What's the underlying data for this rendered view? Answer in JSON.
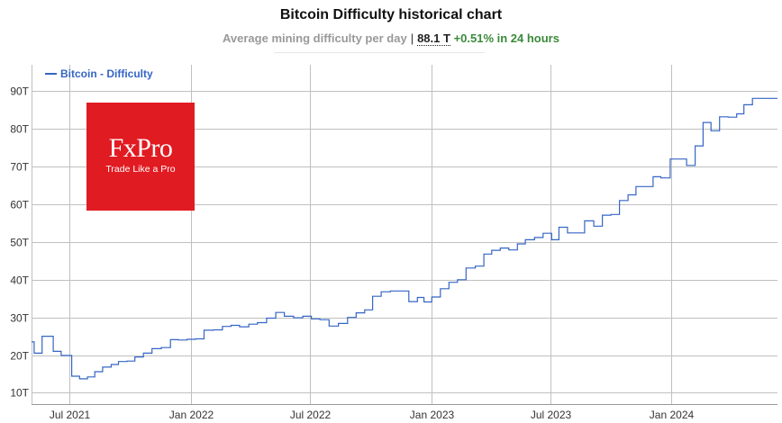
{
  "header": {
    "title": "Bitcoin Difficulty historical chart",
    "subtitle_label": "Average mining difficulty per day",
    "separator": "|",
    "current_value": "88.1 T",
    "change": "+0.51% in 24 hours"
  },
  "logo": {
    "brand": "FxPro",
    "tagline": "Trade Like a Pro"
  },
  "colors": {
    "series": "#3565c5",
    "logo_bg": "#e11b22",
    "grid": "#c0c0c0",
    "change": "#3a8a3a"
  },
  "chart_data": {
    "type": "line",
    "title": "Bitcoin Difficulty historical chart",
    "legend": [
      "Bitcoin - Difficulty"
    ],
    "legend_position": "top-left",
    "grid": true,
    "y_unit": "T",
    "ylim": [
      7,
      97
    ],
    "y_ticks": [
      10,
      20,
      30,
      40,
      50,
      60,
      70,
      80,
      90
    ],
    "y_tick_labels": [
      "10T",
      "20T",
      "30T",
      "40T",
      "50T",
      "60T",
      "70T",
      "80T",
      "90T"
    ],
    "xlim": [
      "2021-05-04",
      "2024-06-10"
    ],
    "x_ticks": [
      "2021-07-01",
      "2022-01-01",
      "2022-07-01",
      "2023-01-01",
      "2023-07-01",
      "2024-01-01"
    ],
    "x_tick_labels": [
      "Jul 2021",
      "Jan 2022",
      "Jul 2022",
      "Jan 2023",
      "Jul 2023",
      "Jan 2024"
    ],
    "series": [
      {
        "name": "Bitcoin - Difficulty",
        "step": true,
        "points": [
          [
            "2021-05-04",
            23.5
          ],
          [
            "2021-05-08",
            20.5
          ],
          [
            "2021-05-20",
            25.0
          ],
          [
            "2021-06-06",
            21.0
          ],
          [
            "2021-06-18",
            19.9
          ],
          [
            "2021-07-04",
            14.4
          ],
          [
            "2021-07-16",
            13.7
          ],
          [
            "2021-07-28",
            14.2
          ],
          [
            "2021-08-08",
            15.6
          ],
          [
            "2021-08-20",
            16.8
          ],
          [
            "2021-09-02",
            17.5
          ],
          [
            "2021-09-13",
            18.3
          ],
          [
            "2021-09-26",
            18.4
          ],
          [
            "2021-10-08",
            19.5
          ],
          [
            "2021-10-21",
            20.5
          ],
          [
            "2021-11-03",
            21.7
          ],
          [
            "2021-11-17",
            22.0
          ],
          [
            "2021-12-01",
            24.1
          ],
          [
            "2021-12-13",
            24.0
          ],
          [
            "2021-12-26",
            24.2
          ],
          [
            "2022-01-08",
            24.3
          ],
          [
            "2022-01-21",
            26.6
          ],
          [
            "2022-02-04",
            26.7
          ],
          [
            "2022-02-18",
            27.6
          ],
          [
            "2022-03-03",
            27.9
          ],
          [
            "2022-03-16",
            27.5
          ],
          [
            "2022-03-30",
            28.2
          ],
          [
            "2022-04-12",
            28.6
          ],
          [
            "2022-04-26",
            29.8
          ],
          [
            "2022-05-10",
            31.3
          ],
          [
            "2022-05-23",
            30.3
          ],
          [
            "2022-06-06",
            29.9
          ],
          [
            "2022-06-20",
            30.3
          ],
          [
            "2022-07-03",
            29.6
          ],
          [
            "2022-07-16",
            29.4
          ],
          [
            "2022-07-30",
            27.7
          ],
          [
            "2022-08-13",
            28.4
          ],
          [
            "2022-08-27",
            30.0
          ],
          [
            "2022-09-09",
            31.2
          ],
          [
            "2022-09-22",
            32.0
          ],
          [
            "2022-10-04",
            35.6
          ],
          [
            "2022-10-17",
            36.8
          ],
          [
            "2022-10-31",
            37.0
          ],
          [
            "2022-11-28",
            34.2
          ],
          [
            "2022-12-11",
            35.3
          ],
          [
            "2022-12-21",
            34.1
          ],
          [
            "2023-01-02",
            35.4
          ],
          [
            "2023-01-15",
            37.6
          ],
          [
            "2023-01-28",
            39.3
          ],
          [
            "2023-02-10",
            40.0
          ],
          [
            "2023-02-23",
            43.1
          ],
          [
            "2023-03-09",
            43.6
          ],
          [
            "2023-03-22",
            46.8
          ],
          [
            "2023-04-03",
            47.8
          ],
          [
            "2023-04-16",
            48.4
          ],
          [
            "2023-04-29",
            47.9
          ],
          [
            "2023-05-12",
            49.5
          ],
          [
            "2023-05-24",
            50.6
          ],
          [
            "2023-06-07",
            51.2
          ],
          [
            "2023-06-20",
            52.3
          ],
          [
            "2023-07-03",
            50.6
          ],
          [
            "2023-07-14",
            53.9
          ],
          [
            "2023-07-27",
            52.4
          ],
          [
            "2023-08-09",
            52.4
          ],
          [
            "2023-08-22",
            55.6
          ],
          [
            "2023-09-05",
            54.2
          ],
          [
            "2023-09-18",
            57.1
          ],
          [
            "2023-10-01",
            57.3
          ],
          [
            "2023-10-14",
            61.0
          ],
          [
            "2023-10-27",
            62.5
          ],
          [
            "2023-11-08",
            64.7
          ],
          [
            "2023-11-21",
            64.7
          ],
          [
            "2023-12-04",
            67.3
          ],
          [
            "2023-12-16",
            67.0
          ],
          [
            "2023-12-30",
            72.0
          ],
          [
            "2024-01-11",
            72.0
          ],
          [
            "2024-01-24",
            70.3
          ],
          [
            "2024-02-06",
            75.5
          ],
          [
            "2024-02-18",
            81.7
          ],
          [
            "2024-03-01",
            79.5
          ],
          [
            "2024-03-14",
            83.2
          ],
          [
            "2024-03-27",
            83.1
          ],
          [
            "2024-04-09",
            84.0
          ],
          [
            "2024-04-20",
            86.4
          ],
          [
            "2024-05-03",
            88.1
          ],
          [
            "2024-06-10",
            88.1
          ]
        ]
      }
    ]
  }
}
